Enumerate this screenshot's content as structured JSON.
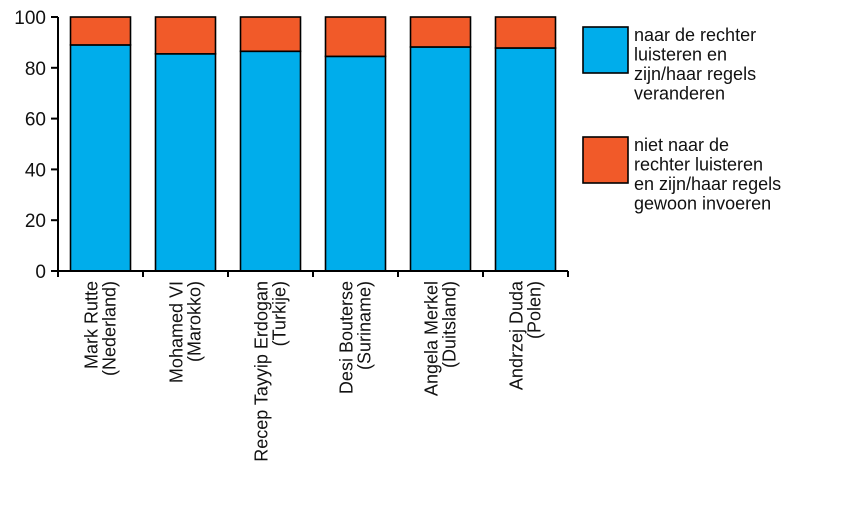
{
  "chart_data": {
    "type": "bar",
    "stacked": true,
    "categories": [
      [
        "Mark Rutte",
        "(Nederland)"
      ],
      [
        "Mohamed VI",
        "(Marokko)"
      ],
      [
        "Recep Tayyip Erdogan",
        "(Turkije)"
      ],
      [
        "Desi Bouterse",
        "(Suriname)"
      ],
      [
        "Angela Merkel",
        "(Duitsland)"
      ],
      [
        "Andrzej Duda",
        "(Polen)"
      ]
    ],
    "series": [
      {
        "name": [
          "naar de rechter",
          "luisteren en",
          "zijn/haar regels",
          "veranderen"
        ],
        "color": "#00adeb",
        "values": [
          89,
          85.5,
          86.5,
          84.5,
          88.2,
          87.8
        ]
      },
      {
        "name": [
          "niet naar de",
          "rechter luisteren",
          "en zijn/haar regels",
          "gewoon invoeren"
        ],
        "color": "#f15a29",
        "values": [
          11,
          14.5,
          13.5,
          15.5,
          11.8,
          12.2
        ]
      }
    ],
    "ylim": [
      0,
      100
    ],
    "yticks": [
      0,
      20,
      40,
      60,
      80,
      100
    ],
    "xlabel": "",
    "ylabel": "",
    "grid": false,
    "legend": "right"
  }
}
